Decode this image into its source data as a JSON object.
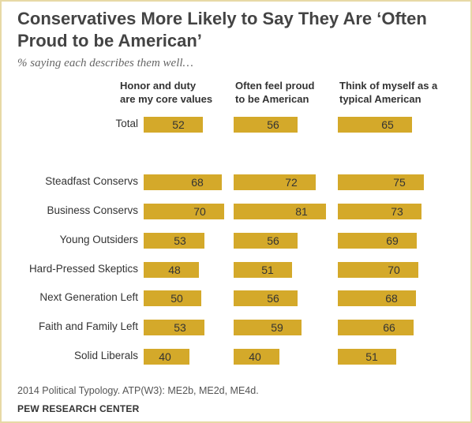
{
  "colors": {
    "bar": "#d4a92a",
    "border": "#e7d9a6",
    "title": "#444444"
  },
  "chart_data": {
    "type": "bar",
    "title": "Conservatives More Likely to Say They Are ‘Often\nProud to be American’",
    "subtitle": "% saying each describes them well…",
    "categories": [
      "Total",
      "Steadfast Conservs",
      "Business Conservs",
      "Young Outsiders",
      "Hard-Pressed Skeptics",
      "Next Generation Left",
      "Faith and Family Left",
      "Solid Liberals"
    ],
    "series": [
      {
        "name": "Honor and duty\nare my core values",
        "values": [
          52,
          68,
          70,
          53,
          48,
          50,
          53,
          40
        ]
      },
      {
        "name": "Often feel proud\nto be American",
        "values": [
          56,
          72,
          81,
          56,
          51,
          56,
          59,
          40
        ]
      },
      {
        "name": "Think of myself as a\ntypical American",
        "values": [
          65,
          75,
          73,
          69,
          70,
          68,
          66,
          51
        ]
      }
    ]
  },
  "source": "2014 Political Typology. ATP(W3): ME2b, ME2d, ME4d.",
  "organization": "PEW RESEARCH CENTER"
}
